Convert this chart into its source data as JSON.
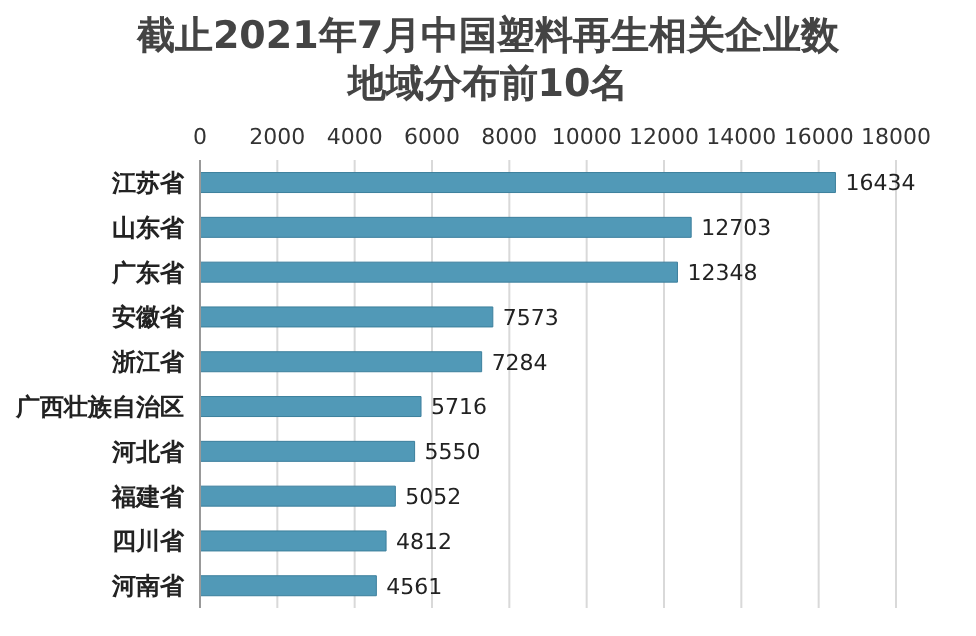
{
  "chart_data": {
    "type": "bar",
    "orientation": "horizontal",
    "title": "截止2021年7月中国塑料再生相关企业数地域分布前10名",
    "categories": [
      "江苏省",
      "山东省",
      "广东省",
      "安徽省",
      "浙江省",
      "广西壮族自治区",
      "河北省",
      "福建省",
      "四川省",
      "河南省"
    ],
    "values": [
      16434,
      12703,
      12348,
      7573,
      7284,
      5716,
      5550,
      5052,
      4812,
      4561
    ],
    "color": "#5199b7",
    "xlim": [
      0,
      18000
    ],
    "xticks": [
      0,
      2000,
      4000,
      6000,
      8000,
      10000,
      12000,
      14000,
      16000,
      18000
    ],
    "grid": "x",
    "data_labels": true
  }
}
